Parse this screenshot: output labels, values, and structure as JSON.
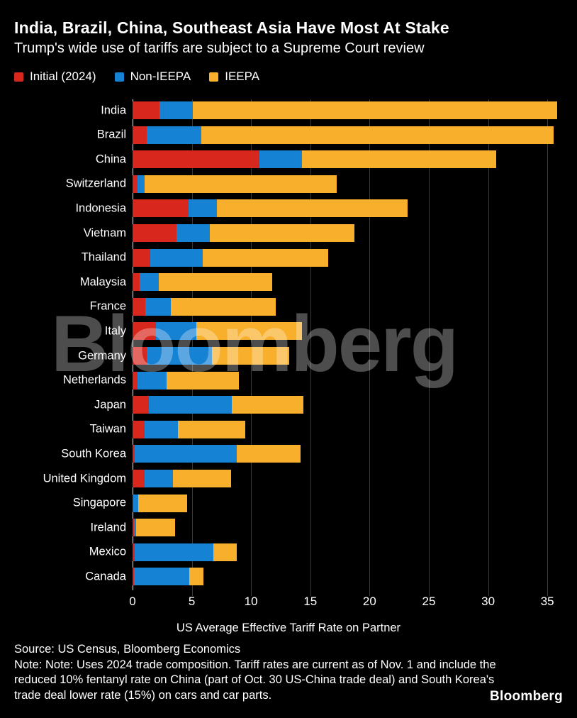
{
  "header": {
    "title": "India, Brazil, China, Southeast Asia Have Most At Stake",
    "subtitle": "Trump's wide use of tariffs are subject to a Supreme Court review"
  },
  "colors": {
    "background": "#000000",
    "initial": "#d8281d",
    "non_ieepa": "#1682d4",
    "ieepa": "#f8b02c",
    "gridline": "#3a3a3a",
    "zero_axis": "#e8e8e8",
    "text": "#ffffff",
    "watermark": "rgba(255,255,255,0.30)"
  },
  "legend": [
    {
      "label": "Initial (2024)",
      "color_key": "initial"
    },
    {
      "label": "Non-IEEPA",
      "color_key": "non_ieepa"
    },
    {
      "label": "IEEPA",
      "color_key": "ieepa"
    }
  ],
  "chart_data": {
    "type": "bar",
    "orientation": "horizontal",
    "stacked": true,
    "title": "India, Brazil, China, Southeast Asia Have Most At Stake",
    "subtitle": "Trump's wide use of tariffs are subject to a Supreme Court review",
    "xlabel": "US Average Effective Tariff Rate on Partner",
    "ylabel": "",
    "xlim": [
      0,
      37.5
    ],
    "x_ticks": [
      0,
      5,
      10,
      15,
      20,
      25,
      30,
      35
    ],
    "grid": "vertical",
    "legend_position": "top",
    "categories": [
      "India",
      "Brazil",
      "China",
      "Switzerland",
      "Indonesia",
      "Vietnam",
      "Thailand",
      "Malaysia",
      "France",
      "Italy",
      "Germany",
      "Netherlands",
      "Japan",
      "Taiwan",
      "South Korea",
      "United Kingdom",
      "Singapore",
      "Ireland",
      "Mexico",
      "Canada"
    ],
    "series": [
      {
        "name": "Initial (2024)",
        "color_key": "initial",
        "values": [
          2.3,
          1.2,
          10.7,
          0.4,
          4.7,
          3.7,
          1.5,
          0.6,
          1.1,
          2.0,
          1.2,
          0.4,
          1.4,
          1.0,
          0.2,
          1.0,
          0.05,
          0.1,
          0.2,
          0.1
        ]
      },
      {
        "name": "Non-IEEPA",
        "color_key": "non_ieepa",
        "values": [
          2.8,
          4.6,
          3.6,
          0.6,
          2.4,
          2.8,
          4.4,
          1.6,
          2.1,
          3.4,
          5.5,
          2.5,
          7.0,
          2.8,
          8.6,
          2.4,
          0.45,
          0.2,
          6.6,
          4.7
        ]
      },
      {
        "name": "IEEPA",
        "color_key": "ieepa",
        "values": [
          30.7,
          29.7,
          16.4,
          16.2,
          16.1,
          12.2,
          10.6,
          9.6,
          8.9,
          8.9,
          6.5,
          6.1,
          6.0,
          5.7,
          5.4,
          4.9,
          4.1,
          3.3,
          2.0,
          1.2
        ]
      }
    ],
    "totals": [
      35.8,
      35.5,
      30.7,
      17.2,
      23.2,
      18.7,
      16.5,
      11.8,
      12.1,
      14.3,
      13.2,
      9.0,
      14.4,
      9.5,
      14.2,
      8.3,
      4.6,
      3.6,
      8.8,
      6.0
    ]
  },
  "footer": {
    "source": "Source: US Census, Bloomberg Economics",
    "note": "Note: Note: Uses 2024 trade composition. Tariff rates are current as of Nov. 1 and include the reduced 10% fentanyl rate on China (part of Oct. 30 US-China trade deal) and South Korea's trade deal lower rate (15%) on cars and car parts.",
    "logo": "Bloomberg"
  },
  "watermark_text": "Bloomberg"
}
